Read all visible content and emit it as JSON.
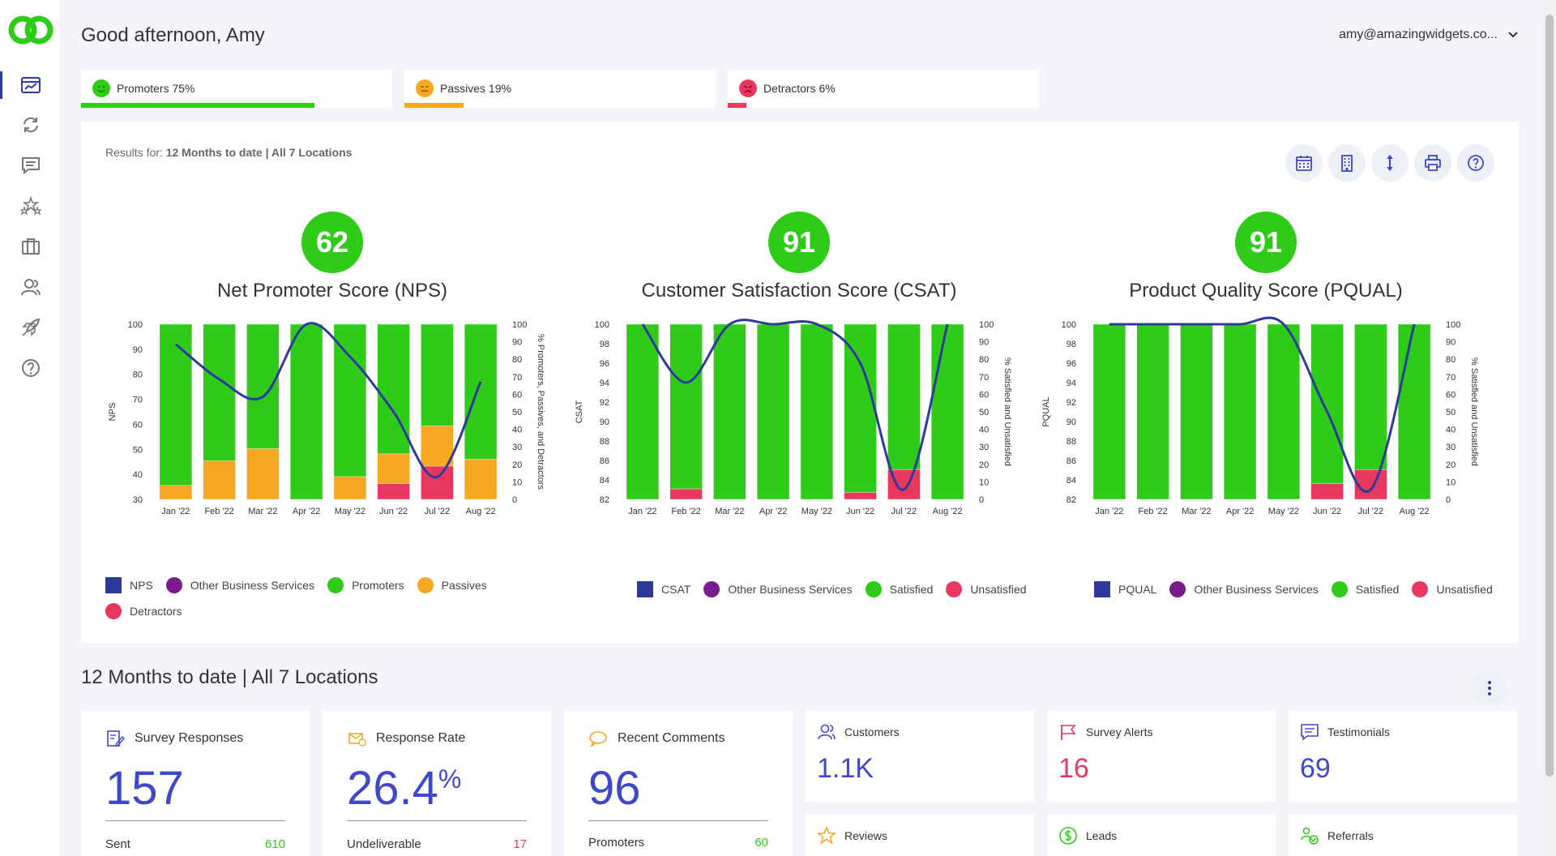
{
  "header": {
    "greeting": "Good afternoon, Amy",
    "user_email": "amy@amazingwidgets.co..."
  },
  "sidebar": {
    "items": [
      {
        "icon": "dashboard-icon",
        "active": true
      },
      {
        "icon": "refresh-icon",
        "active": false
      },
      {
        "icon": "comments-icon",
        "active": false
      },
      {
        "icon": "stars-icon",
        "active": false
      },
      {
        "icon": "briefcase-icon",
        "active": false
      },
      {
        "icon": "users-icon",
        "active": false
      },
      {
        "icon": "rocket-icon",
        "active": false
      },
      {
        "icon": "help-icon",
        "active": false
      }
    ]
  },
  "tabs": [
    {
      "label": "Promoters 75%",
      "percent": 75,
      "color": "#2ecc18"
    },
    {
      "label": "Passives 19%",
      "percent": 19,
      "color": "#f7a823"
    },
    {
      "label": "Detractors 6%",
      "percent": 6,
      "color": "#e8385f"
    }
  ],
  "results": {
    "prefix": "Results for:",
    "value": "12 Months to date | All 7 Locations"
  },
  "colors": {
    "green": "#2ecc18",
    "orange": "#f7a823",
    "red": "#e8385f",
    "blue": "#2d3a9c",
    "purple": "#7a1a8c",
    "accent": "#3f48cc"
  },
  "charts": {
    "nps": {
      "score": "62",
      "title": "Net Promoter Score (NPS)",
      "ylabel": "NPS",
      "y2label": "% Promoters, Passives, and Detractors",
      "legend": [
        "NPS",
        "Other Business Services",
        "Promoters",
        "Passives",
        "Detractors"
      ]
    },
    "csat": {
      "score": "91",
      "title": "Customer Satisfaction Score (CSAT)",
      "ylabel": "CSAT",
      "y2label": "% Satisfied and Unsatisfied",
      "legend": [
        "CSAT",
        "Other Business Services",
        "Satisfied",
        "Unsatisfied"
      ]
    },
    "pqual": {
      "score": "91",
      "title": "Product Quality Score (PQUAL)",
      "ylabel": "PQUAL",
      "y2label": "% Satisfied and Unsatisfied",
      "legend": [
        "PQUAL",
        "Other Business Services",
        "Satisfied",
        "Unsatisfied"
      ]
    }
  },
  "chart_data": [
    {
      "type": "bar",
      "title": "Net Promoter Score (NPS)",
      "categories": [
        "Jan '22",
        "Feb '22",
        "Mar '22",
        "Apr '22",
        "May '22",
        "Jun '22",
        "Jul '22",
        "Aug '22"
      ],
      "stacked_percent": true,
      "series": [
        {
          "name": "Detractors",
          "values": [
            0,
            0,
            0,
            0,
            0,
            9,
            19,
            0
          ]
        },
        {
          "name": "Passives",
          "values": [
            8,
            22,
            29,
            0,
            13,
            17,
            23,
            23
          ]
        },
        {
          "name": "Promoters",
          "values": [
            92,
            78,
            71,
            100,
            87,
            74,
            58,
            77
          ]
        }
      ],
      "line": {
        "name": "NPS",
        "values": [
          92,
          78,
          71,
          100,
          87,
          65,
          39,
          77
        ]
      },
      "ylim": [
        30,
        100
      ],
      "y2lim": [
        0,
        100
      ],
      "yticks": [
        30,
        40,
        50,
        60,
        70,
        80,
        90,
        100
      ],
      "y2ticks": [
        0,
        10,
        20,
        30,
        40,
        50,
        60,
        70,
        80,
        90,
        100
      ],
      "ylabel": "NPS",
      "y2label": "% Promoters, Passives, and Detractors"
    },
    {
      "type": "bar",
      "title": "Customer Satisfaction Score (CSAT)",
      "categories": [
        "Jan '22",
        "Feb '22",
        "Mar '22",
        "Apr '22",
        "May '22",
        "Jun '22",
        "Jul '22",
        "Aug '22"
      ],
      "stacked_percent": true,
      "series": [
        {
          "name": "Unsatisfied",
          "values": [
            0,
            6,
            0,
            0,
            0,
            4,
            17,
            0
          ]
        },
        {
          "name": "Satisfied",
          "values": [
            100,
            94,
            100,
            100,
            100,
            96,
            83,
            100
          ]
        }
      ],
      "line": {
        "name": "CSAT",
        "values": [
          100,
          94,
          100,
          100,
          100,
          96,
          83,
          100
        ]
      },
      "ylim": [
        82,
        100
      ],
      "y2lim": [
        0,
        100
      ],
      "yticks": [
        82,
        84,
        86,
        88,
        90,
        92,
        94,
        96,
        98,
        100
      ],
      "y2ticks": [
        0,
        10,
        20,
        30,
        40,
        50,
        60,
        70,
        80,
        90,
        100
      ],
      "ylabel": "CSAT",
      "y2label": "% Satisfied and Unsatisfied"
    },
    {
      "type": "bar",
      "title": "Product Quality Score (PQUAL)",
      "categories": [
        "Jan '22",
        "Feb '22",
        "Mar '22",
        "Apr '22",
        "May '22",
        "Jun '22",
        "Jul '22",
        "Aug '22"
      ],
      "stacked_percent": true,
      "series": [
        {
          "name": "Unsatisfied",
          "values": [
            0,
            0,
            0,
            0,
            0,
            9,
            17,
            0
          ]
        },
        {
          "name": "Satisfied",
          "values": [
            100,
            100,
            100,
            100,
            100,
            91,
            83,
            100
          ]
        }
      ],
      "line": {
        "name": "PQUAL",
        "values": [
          100,
          100,
          100,
          100,
          100,
          91,
          83,
          100
        ]
      },
      "ylim": [
        82,
        100
      ],
      "y2lim": [
        0,
        100
      ],
      "yticks": [
        82,
        84,
        86,
        88,
        90,
        92,
        94,
        96,
        98,
        100
      ],
      "y2ticks": [
        0,
        10,
        20,
        30,
        40,
        50,
        60,
        70,
        80,
        90,
        100
      ],
      "ylabel": "PQUAL",
      "y2label": "% Satisfied and Unsatisfied"
    }
  ],
  "section": {
    "title": "12 Months to date | All 7 Locations"
  },
  "cards": {
    "survey_responses": {
      "title": "Survey Responses",
      "value": "157",
      "foot_label": "Sent",
      "foot_value": "610"
    },
    "response_rate": {
      "title": "Response Rate",
      "value": "26.4",
      "unit": "%",
      "foot_label": "Undeliverable",
      "foot_value": "17"
    },
    "recent_comments": {
      "title": "Recent Comments",
      "value": "96",
      "foot_label": "Promoters",
      "foot_value": "60"
    },
    "customers": {
      "title": "Customers",
      "value": "1.1K"
    },
    "survey_alerts": {
      "title": "Survey Alerts",
      "value": "16"
    },
    "testimonials": {
      "title": "Testimonials",
      "value": "69"
    },
    "reviews": {
      "title": "Reviews"
    },
    "leads": {
      "title": "Leads"
    },
    "referrals": {
      "title": "Referrals"
    }
  }
}
